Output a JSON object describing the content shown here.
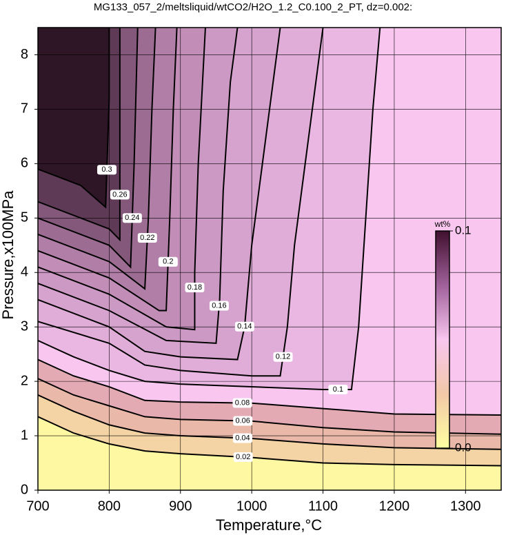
{
  "chart_data": {
    "type": "contour",
    "title": "MG133_057_2/meltsliquid/wtCO2/H2O_1.2_C0.100_2_PT, dz=0.002:",
    "x_label": "Temperature,°C",
    "y_label": "Pressure,x100MPa",
    "xlim": [
      700,
      1350
    ],
    "ylim": [
      0,
      8.5
    ],
    "xticks": [
      700,
      800,
      900,
      1000,
      1100,
      1200,
      1300
    ],
    "yticks": [
      0,
      1,
      2,
      3,
      4,
      5,
      6,
      7,
      8
    ],
    "grid": true,
    "background": "#2e1626",
    "contours": [
      {
        "level": 0.3,
        "color": "#5e3a56",
        "x": [
          700,
          760,
          795,
          800,
          800
        ],
        "y": [
          5.9,
          5.6,
          5.2,
          7.2,
          8.5
        ]
      },
      {
        "level": 0.26,
        "color": "#84587a",
        "x": [
          700,
          800,
          815,
          815
        ],
        "y": [
          5.3,
          4.8,
          4.6,
          8.5
        ]
      },
      {
        "level": 0.24,
        "color": "#9c6c92",
        "x": [
          700,
          800,
          830,
          835,
          840
        ],
        "y": [
          5.0,
          4.5,
          4.1,
          6,
          8.5
        ]
      },
      {
        "level": 0.22,
        "color": "#b07ea6",
        "x": [
          700,
          800,
          850,
          855,
          860,
          865
        ],
        "y": [
          4.7,
          4.2,
          3.7,
          5,
          7,
          8.5
        ]
      },
      {
        "level": 0.2,
        "color": "#c28eb8",
        "x": [
          700,
          800,
          870,
          880,
          885,
          890,
          895
        ],
        "y": [
          4.4,
          3.9,
          3.3,
          3.3,
          5,
          7,
          8.5
        ]
      },
      {
        "level": 0.18,
        "color": "#cc98c4",
        "x": [
          700,
          800,
          880,
          920,
          920,
          925,
          935
        ],
        "y": [
          4.1,
          3.6,
          3.0,
          2.95,
          4,
          6,
          8.5
        ]
      },
      {
        "level": 0.16,
        "color": "#d6a2ce",
        "x": [
          700,
          800,
          880,
          950,
          955,
          960,
          970,
          980
        ],
        "y": [
          3.8,
          3.3,
          2.75,
          2.7,
          3.5,
          5.5,
          7.5,
          8.5
        ]
      },
      {
        "level": 0.14,
        "color": "#e0acd8",
        "x": [
          700,
          800,
          850,
          900,
          980,
          990,
          1000,
          1020,
          1040
        ],
        "y": [
          3.5,
          3.0,
          2.55,
          2.45,
          2.4,
          3.0,
          4.5,
          6.5,
          8.5
        ]
      },
      {
        "level": 0.12,
        "color": "#eab6e2",
        "x": [
          700,
          800,
          850,
          900,
          1000,
          1040,
          1050,
          1060,
          1080,
          1100
        ],
        "y": [
          3.1,
          2.7,
          2.3,
          2.2,
          2.1,
          2.1,
          3,
          4.5,
          6.5,
          8.5
        ]
      },
      {
        "level": 0.1,
        "color": "#f8c6ee",
        "x": [
          700,
          750,
          800,
          850,
          900,
          1000,
          1100,
          1140,
          1150,
          1160,
          1170,
          1180
        ],
        "y": [
          2.75,
          2.45,
          2.2,
          2.0,
          1.95,
          1.9,
          1.85,
          1.85,
          3.0,
          5,
          7,
          8.5
        ]
      },
      {
        "level": 0.08,
        "color": "#e4aab4",
        "x": [
          700,
          750,
          800,
          850,
          900,
          1000,
          1100,
          1200,
          1350
        ],
        "y": [
          2.4,
          2.1,
          1.9,
          1.65,
          1.62,
          1.6,
          1.5,
          1.4,
          1.38
        ]
      },
      {
        "level": 0.06,
        "color": "#eab8a8",
        "x": [
          700,
          750,
          800,
          850,
          900,
          1000,
          1100,
          1200,
          1350
        ],
        "y": [
          2.05,
          1.75,
          1.55,
          1.35,
          1.3,
          1.27,
          1.15,
          1.07,
          1.03
        ]
      },
      {
        "level": 0.04,
        "color": "#f4d4a4",
        "x": [
          700,
          750,
          800,
          850,
          900,
          1000,
          1100,
          1200,
          1350
        ],
        "y": [
          1.75,
          1.45,
          1.2,
          1.05,
          1.0,
          0.95,
          0.85,
          0.78,
          0.75
        ]
      },
      {
        "level": 0.02,
        "color": "#fff8a2",
        "x": [
          700,
          750,
          800,
          850,
          900,
          1000,
          1100,
          1200,
          1350
        ],
        "y": [
          1.35,
          1.05,
          0.85,
          0.72,
          0.67,
          0.6,
          0.5,
          0.47,
          0.45
        ]
      }
    ],
    "colorbar": {
      "title": "wt%",
      "max": 0.1,
      "min": {
        "value": 0,
        "label": "0.0"
      },
      "colors": [
        "#ffffa0",
        "#f2c8a8",
        "#f8c6ee",
        "#a0609a",
        "#40102e"
      ]
    }
  }
}
